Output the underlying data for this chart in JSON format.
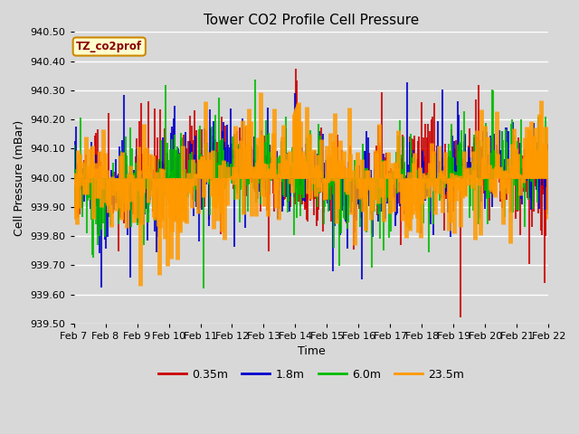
{
  "title": "Tower CO2 Profile Cell Pressure",
  "xlabel": "Time",
  "ylabel": "Cell Pressure (mBar)",
  "ylim": [
    939.5,
    940.5
  ],
  "yticks": [
    939.5,
    939.6,
    939.7,
    939.8,
    939.9,
    940.0,
    940.1,
    940.2,
    940.3,
    940.4,
    940.5
  ],
  "series": [
    "0.35m",
    "1.8m",
    "6.0m",
    "23.5m"
  ],
  "colors": [
    "#cc0000",
    "#0000cc",
    "#00bb00",
    "#ff9900"
  ],
  "annotation_text": "TZ_co2prof",
  "annotation_bg": "#ffffcc",
  "annotation_border": "#cc8800",
  "annotation_text_color": "#880000",
  "background_color": "#d8d8d8",
  "x_tick_labels": [
    "Feb 7",
    "Feb 8",
    "Feb 9",
    "Feb 10",
    "Feb 11",
    "Feb 12",
    "Feb 13",
    "Feb 14",
    "Feb 15",
    "Feb 16",
    "Feb 17",
    "Feb 18",
    "Feb 19",
    "Feb 20",
    "Feb 21",
    "Feb 22"
  ],
  "n_points": 480,
  "base_pressure": 940.0
}
